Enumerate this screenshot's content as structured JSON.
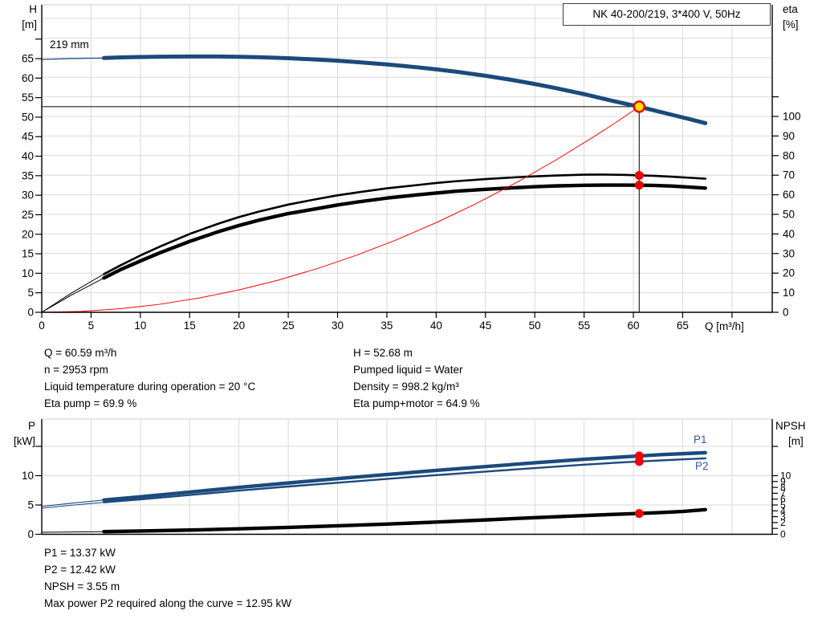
{
  "labels": {
    "title": "NK 40-200/219, 3*400 V, 50Hz",
    "impeller": "219 mm",
    "h_axis": "H",
    "h_axis_unit": "[m]",
    "eta_axis": "eta",
    "eta_axis_unit": "[%]",
    "q_axis": "Q [m³/h]",
    "p_axis": "P",
    "p_axis_unit": "[kW]",
    "npsh_axis": "NPSH",
    "npsh_axis_unit": "[m]",
    "p1_series": "P1",
    "p2_series": "P2"
  },
  "colors": {
    "blue": "#1b4a7c",
    "black": "#000000",
    "red": "#ee0000",
    "red_line": "#ff0000",
    "yellow": "#ffe000",
    "grid": "#d9d9d9",
    "border": "#cfcfcf",
    "axis": "#000000",
    "series_label_blue": "#2a5e9e"
  },
  "info": {
    "left": [
      "Q = 60.59 m³/h",
      "n = 2953 rpm",
      "Liquid temperature during operation = 20 °C",
      "Eta pump = 69.9 %"
    ],
    "right": [
      "H = 52.68 m",
      "Pumped liquid = Water",
      "Density = 998.2 kg/m³",
      "Eta pump+motor = 64.9 %"
    ],
    "bottom": [
      "P1 = 13.37 kW",
      "P2 = 12.42 kW",
      "NPSH = 3.55 m",
      "Max power P2 required along the curve = 12.95 kW"
    ]
  },
  "chart_data": [
    {
      "type": "line",
      "title": "NK 40-200/219, 3*400 V, 50Hz",
      "impeller_label": "219 mm",
      "xlabel": "Q [m³/h]",
      "x_ticks": [
        0,
        5,
        10,
        15,
        20,
        25,
        30,
        35,
        40,
        45,
        50,
        55,
        60,
        65
      ],
      "x_extra_ticks": [
        70
      ],
      "x_grid": [
        5,
        10,
        15,
        20,
        25,
        30,
        35,
        40,
        45,
        50,
        55,
        60,
        65,
        70
      ],
      "y_left_label": "H [m]",
      "y_left_ticks": [
        0,
        5,
        10,
        15,
        20,
        25,
        30,
        35,
        40,
        45,
        50,
        55,
        60,
        65
      ],
      "y_left_extra_ticks": [
        70
      ],
      "y_right_label": "eta [%]",
      "y_right_ticks": [
        0,
        10,
        20,
        30,
        40,
        50,
        60,
        70,
        80,
        90,
        100
      ],
      "y_right_extra_ticks": [
        110
      ],
      "grid_eta_lines": [
        10,
        20,
        30,
        40,
        50,
        60,
        70,
        80,
        90,
        100,
        110,
        120,
        130,
        140,
        150
      ],
      "duty_point": {
        "q": 60.59,
        "h": 52.68
      },
      "series": [
        {
          "name": "head-curve",
          "axis": "left",
          "color_key": "blue",
          "width": 5,
          "lead_width": 1.2,
          "lead": [
            [
              0,
              64.8
            ],
            [
              3,
              65.0
            ],
            [
              6.3,
              65.15
            ]
          ],
          "points": [
            [
              6.3,
              65.15
            ],
            [
              8,
              65.3
            ],
            [
              10,
              65.42
            ],
            [
              12,
              65.5
            ],
            [
              15,
              65.55
            ],
            [
              18,
              65.55
            ],
            [
              20,
              65.47
            ],
            [
              22,
              65.35
            ],
            [
              25,
              65.1
            ],
            [
              28,
              64.75
            ],
            [
              30,
              64.45
            ],
            [
              32,
              64.1
            ],
            [
              35,
              63.5
            ],
            [
              38,
              62.8
            ],
            [
              40,
              62.25
            ],
            [
              42,
              61.65
            ],
            [
              45,
              60.6
            ],
            [
              48,
              59.4
            ],
            [
              50,
              58.5
            ],
            [
              52,
              57.5
            ],
            [
              55,
              55.9
            ],
            [
              58,
              54.1
            ],
            [
              60.59,
              52.68
            ],
            [
              62,
              51.8
            ],
            [
              64,
              50.55
            ],
            [
              66,
              49.3
            ],
            [
              67.3,
              48.45
            ]
          ]
        },
        {
          "name": "eta-pump-curve",
          "axis": "right",
          "color_key": "black",
          "width": 2.6,
          "lead_width": 1,
          "lead": [
            [
              0,
              0
            ],
            [
              3,
              9.8
            ],
            [
              6.3,
              19.5
            ]
          ],
          "points": [
            [
              6.3,
              19.5
            ],
            [
              8,
              24
            ],
            [
              10,
              29
            ],
            [
              12,
              33.6
            ],
            [
              15,
              40
            ],
            [
              18,
              45.4
            ],
            [
              20,
              48.6
            ],
            [
              22,
              51.4
            ],
            [
              25,
              55
            ],
            [
              28,
              57.9
            ],
            [
              30,
              59.7
            ],
            [
              32,
              61.2
            ],
            [
              35,
              63.3
            ],
            [
              38,
              64.9
            ],
            [
              40,
              66
            ],
            [
              42,
              66.9
            ],
            [
              45,
              68
            ],
            [
              48,
              68.9
            ],
            [
              50,
              69.4
            ],
            [
              52,
              69.8
            ],
            [
              55,
              70.25
            ],
            [
              57,
              70.3
            ],
            [
              59,
              70.15
            ],
            [
              60.59,
              69.9
            ],
            [
              62,
              69.7
            ],
            [
              64,
              69.2
            ],
            [
              66,
              68.6
            ],
            [
              67.3,
              68.2
            ]
          ]
        },
        {
          "name": "eta-pump-motor-curve",
          "axis": "right",
          "color_key": "black",
          "width": 4.4,
          "lead_width": 1,
          "lead": [
            [
              0,
              0
            ],
            [
              3,
              8.8
            ],
            [
              6.3,
              17.5
            ]
          ],
          "points": [
            [
              6.3,
              17.5
            ],
            [
              8,
              21.8
            ],
            [
              10,
              26.2
            ],
            [
              12,
              30.4
            ],
            [
              15,
              36.2
            ],
            [
              18,
              41.3
            ],
            [
              20,
              44.3
            ],
            [
              22,
              47
            ],
            [
              25,
              50.4
            ],
            [
              28,
              53
            ],
            [
              30,
              54.8
            ],
            [
              32,
              56.3
            ],
            [
              35,
              58.3
            ],
            [
              38,
              59.9
            ],
            [
              40,
              60.9
            ],
            [
              42,
              61.8
            ],
            [
              45,
              62.8
            ],
            [
              48,
              63.6
            ],
            [
              50,
              64.1
            ],
            [
              52,
              64.5
            ],
            [
              55,
              64.85
            ],
            [
              57,
              64.95
            ],
            [
              59,
              64.95
            ],
            [
              60.59,
              64.9
            ],
            [
              62,
              64.8
            ],
            [
              64,
              64.4
            ],
            [
              66,
              63.8
            ],
            [
              67.3,
              63.4
            ]
          ]
        },
        {
          "name": "affinity-parabola",
          "axis": "left",
          "color_key": "red_line",
          "width": 1,
          "points": [
            [
              0,
              0
            ],
            [
              4,
              0.23
            ],
            [
              8,
              0.92
            ],
            [
              12,
              2.07
            ],
            [
              16,
              3.67
            ],
            [
              20,
              5.74
            ],
            [
              24,
              8.26
            ],
            [
              28,
              11.25
            ],
            [
              32,
              14.69
            ],
            [
              36,
              18.6
            ],
            [
              40,
              22.96
            ],
            [
              44,
              27.78
            ],
            [
              48,
              33.06
            ],
            [
              52,
              38.8
            ],
            [
              56,
              45.0
            ],
            [
              58,
              48.26
            ],
            [
              60.59,
              52.68
            ]
          ]
        }
      ],
      "markers": [
        {
          "q": 60.59,
          "value": 69.9,
          "axis": "right"
        },
        {
          "q": 60.59,
          "value": 64.9,
          "axis": "right"
        }
      ]
    },
    {
      "type": "line",
      "x_grid": [
        5,
        10,
        15,
        20,
        25,
        30,
        35,
        40,
        45,
        50,
        55,
        60,
        65,
        70
      ],
      "y_left_label": "P [kW]",
      "y_left_ticks": [
        0,
        5,
        10
      ],
      "y_left_extra_ticks": [
        15
      ],
      "y_left_grid": [
        5,
        10,
        15
      ],
      "y_right_label": "NPSH [m]",
      "y_right_ticks": [
        0,
        2,
        3,
        4,
        5,
        6,
        7,
        8,
        9,
        10
      ],
      "y_right_all_tick_marks": [
        0,
        1,
        2,
        3,
        4,
        5,
        6,
        7,
        8,
        9,
        10
      ],
      "y_right_extra_ticks": [
        15
      ],
      "series": [
        {
          "name": "p1-curve",
          "axis": "left",
          "color_key": "blue",
          "width": 4.4,
          "lead_width": 1.1,
          "lead": [
            [
              0,
              4.75
            ],
            [
              3,
              5.3
            ],
            [
              6.3,
              5.85
            ]
          ],
          "points": [
            [
              6.3,
              5.85
            ],
            [
              10,
              6.4
            ],
            [
              15,
              7.2
            ],
            [
              20,
              8.0
            ],
            [
              25,
              8.75
            ],
            [
              30,
              9.5
            ],
            [
              35,
              10.2
            ],
            [
              40,
              10.9
            ],
            [
              45,
              11.55
            ],
            [
              50,
              12.2
            ],
            [
              55,
              12.8
            ],
            [
              58,
              13.1
            ],
            [
              60.59,
              13.37
            ],
            [
              63,
              13.6
            ],
            [
              65,
              13.75
            ],
            [
              67.3,
              13.92
            ]
          ]
        },
        {
          "name": "p2-curve",
          "axis": "left",
          "color_key": "blue",
          "width": 2.4,
          "lead_width": 1.1,
          "lead": [
            [
              0,
              4.45
            ],
            [
              3,
              4.95
            ],
            [
              6.3,
              5.45
            ]
          ],
          "points": [
            [
              6.3,
              5.45
            ],
            [
              10,
              5.95
            ],
            [
              15,
              6.7
            ],
            [
              20,
              7.45
            ],
            [
              25,
              8.15
            ],
            [
              30,
              8.8
            ],
            [
              35,
              9.45
            ],
            [
              40,
              10.1
            ],
            [
              45,
              10.7
            ],
            [
              50,
              11.3
            ],
            [
              55,
              11.88
            ],
            [
              58,
              12.18
            ],
            [
              60.59,
              12.42
            ],
            [
              63,
              12.62
            ],
            [
              65,
              12.78
            ],
            [
              67.3,
              12.95
            ]
          ]
        },
        {
          "name": "npsh-curve",
          "axis": "right",
          "color_key": "black",
          "width": 4.4,
          "lead_width": 1,
          "lead": [
            [
              0,
              0.35
            ],
            [
              6.3,
              0.45
            ]
          ],
          "points": [
            [
              6.3,
              0.45
            ],
            [
              10,
              0.55
            ],
            [
              15,
              0.72
            ],
            [
              20,
              0.93
            ],
            [
              25,
              1.17
            ],
            [
              30,
              1.44
            ],
            [
              35,
              1.74
            ],
            [
              40,
              2.08
            ],
            [
              45,
              2.45
            ],
            [
              50,
              2.84
            ],
            [
              55,
              3.2
            ],
            [
              58,
              3.4
            ],
            [
              60.59,
              3.55
            ],
            [
              63,
              3.72
            ],
            [
              65,
              3.9
            ],
            [
              67.3,
              4.2
            ]
          ]
        }
      ],
      "markers": [
        {
          "q": 60.59,
          "value": 13.37,
          "axis": "left"
        },
        {
          "q": 60.59,
          "value": 12.42,
          "axis": "left"
        },
        {
          "q": 60.59,
          "value": 3.55,
          "axis": "right"
        }
      ]
    }
  ]
}
